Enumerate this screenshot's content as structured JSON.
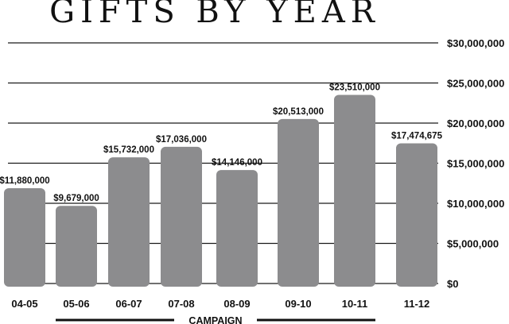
{
  "chart_data": {
    "type": "bar",
    "title": "GIFTS BY YEAR",
    "categories": [
      "04-05",
      "05-06",
      "06-07",
      "07-08",
      "08-09",
      "09-10",
      "10-11",
      "11-12"
    ],
    "values": [
      11880000,
      9679000,
      15732000,
      17036000,
      14146000,
      20513000,
      23510000,
      17474675
    ],
    "value_labels": [
      "$11,880,000",
      "$9,679,000",
      "$15,732,000",
      "$17,036,000",
      "$14,146,000",
      "$20,513,000",
      "$23,510,000",
      "$17,474,675"
    ],
    "y_ticks": [
      0,
      5000000,
      10000000,
      15000000,
      20000000,
      25000000,
      30000000
    ],
    "y_tick_labels": [
      "$0",
      "$5,000,000",
      "$10,000,000",
      "$15,000,000",
      "$20,000,000",
      "$25,000,000",
      "$30,000,000"
    ],
    "ylim": [
      0,
      30000000
    ],
    "y_axis_position": "right",
    "grid": true,
    "bar_color": "#8c8c8e",
    "annotation": {
      "text": "CAMPAIGN",
      "from": "05-06",
      "to": "10-11"
    }
  }
}
